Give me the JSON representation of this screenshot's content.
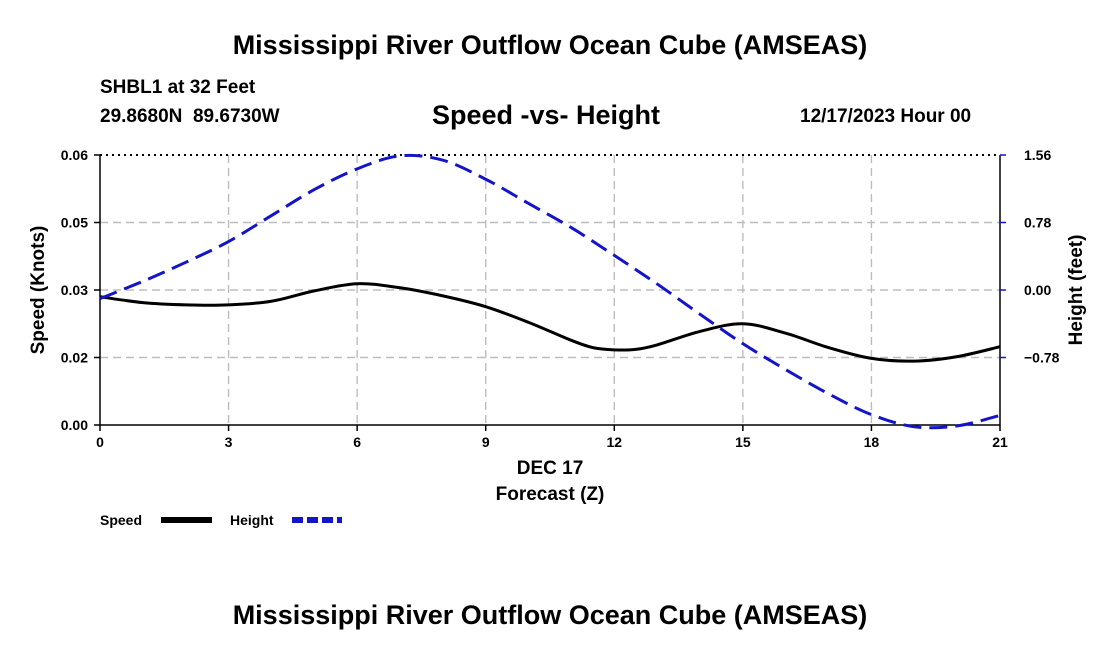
{
  "header": {
    "title": "Mississippi River Outflow Ocean Cube (AMSEAS)",
    "station": "SHBL1 at 32 Feet",
    "coords": "29.8680N  89.6730W",
    "subtitle": "Speed -vs- Height",
    "datetime": "12/17/2023 Hour 00"
  },
  "footer": {
    "title": "Mississippi River Outflow Ocean Cube (AMSEAS)"
  },
  "legend": {
    "speed_label": "Speed",
    "height_label": "Height"
  },
  "colors": {
    "speed": "#000000",
    "height": "#1414c8",
    "grid": "#bdbdbd"
  },
  "chart_data": {
    "type": "line",
    "title": "Speed -vs- Height",
    "xlabel": "Forecast (Z)",
    "xsublabel": "DEC 17",
    "ylabel": "Speed (Knots)",
    "y2label": "Height (feet)",
    "xlim": [
      0,
      21
    ],
    "ylim": [
      0,
      0.06
    ],
    "y2lim": [
      -1.56,
      1.56
    ],
    "xticks": [
      0,
      3,
      6,
      9,
      12,
      15,
      18,
      21
    ],
    "xtick_labels": [
      "0",
      "3",
      "6",
      "9",
      "12",
      "15",
      "18",
      "21"
    ],
    "yticks": [
      0,
      0.015,
      0.03,
      0.045,
      0.06
    ],
    "ytick_labels": [
      "0.00",
      "0.02",
      "0.03",
      "0.05",
      "0.06"
    ],
    "y2ticks": [
      -0.78,
      0,
      0.78,
      1.56
    ],
    "y2tick_labels": [
      "−0.78",
      "0.00",
      "0.78",
      "1.56"
    ],
    "grid": true,
    "series": [
      {
        "name": "Speed",
        "axis": "left",
        "style": "solid",
        "x": [
          0,
          1,
          2,
          3,
          4,
          5,
          6,
          7,
          8,
          9,
          10,
          11,
          11.5,
          12,
          12.5,
          13,
          14,
          15,
          16,
          17,
          18,
          19,
          20,
          21
        ],
        "values": [
          0.0285,
          0.0272,
          0.0267,
          0.0267,
          0.0275,
          0.0298,
          0.0314,
          0.0305,
          0.0287,
          0.0263,
          0.0228,
          0.0188,
          0.0172,
          0.0167,
          0.0168,
          0.0178,
          0.0208,
          0.0225,
          0.0204,
          0.0172,
          0.0148,
          0.0142,
          0.0152,
          0.0174
        ]
      },
      {
        "name": "Height",
        "axis": "right",
        "style": "dashed",
        "x": [
          0,
          1,
          2,
          3,
          4,
          5,
          6,
          7,
          8,
          9,
          10,
          11,
          12,
          13,
          14,
          15,
          16,
          17,
          18,
          19,
          20,
          21
        ],
        "values": [
          -0.1,
          0.1,
          0.32,
          0.56,
          0.86,
          1.16,
          1.4,
          1.55,
          1.5,
          1.28,
          1.0,
          0.72,
          0.4,
          0.07,
          -0.28,
          -0.62,
          -0.92,
          -1.2,
          -1.44,
          -1.58,
          -1.57,
          -1.45
        ]
      }
    ]
  }
}
